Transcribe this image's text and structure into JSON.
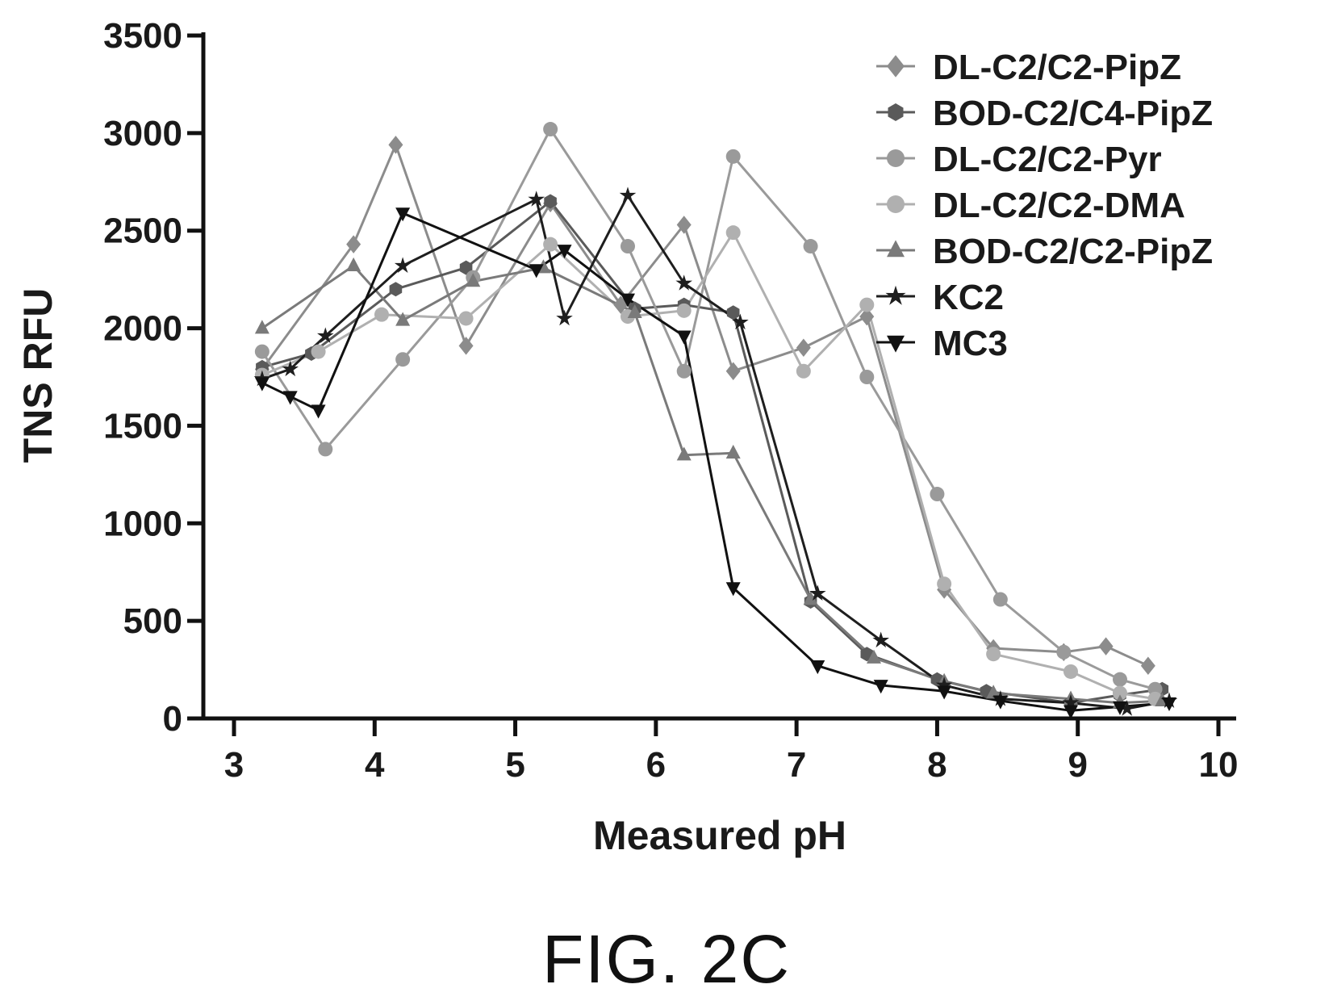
{
  "caption": "FIG. 2C",
  "chart_data": {
    "type": "line",
    "xlabel": "Measured pH",
    "ylabel": "TNS RFU",
    "xlim": [
      3,
      10
    ],
    "ylim": [
      0,
      3500
    ],
    "x_ticks": [
      "3",
      "4",
      "5",
      "6",
      "7",
      "8",
      "9",
      "10"
    ],
    "y_ticks": [
      "0",
      "500",
      "1000",
      "1500",
      "2000",
      "2500",
      "3000",
      "3500"
    ],
    "legend_position": "top-right",
    "grid": false,
    "series": [
      {
        "name": "DL-C2/C2-PipZ",
        "marker": "diamond",
        "color": "#8c8c8c",
        "points": [
          [
            3.2,
            1790
          ],
          [
            3.85,
            2430
          ],
          [
            4.15,
            2940
          ],
          [
            4.65,
            1910
          ],
          [
            5.25,
            2640
          ],
          [
            5.75,
            2120
          ],
          [
            6.2,
            2530
          ],
          [
            6.55,
            1780
          ],
          [
            7.05,
            1900
          ],
          [
            7.5,
            2060
          ],
          [
            8.05,
            660
          ],
          [
            8.4,
            360
          ],
          [
            8.9,
            340
          ],
          [
            9.2,
            370
          ],
          [
            9.5,
            270
          ]
        ]
      },
      {
        "name": "BOD-C2/C4-PipZ",
        "marker": "hexagon",
        "color": "#5a5a5a",
        "points": [
          [
            3.2,
            1800
          ],
          [
            3.55,
            1870
          ],
          [
            4.15,
            2200
          ],
          [
            4.65,
            2310
          ],
          [
            5.25,
            2650
          ],
          [
            5.85,
            2100
          ],
          [
            6.2,
            2120
          ],
          [
            6.55,
            2080
          ],
          [
            7.1,
            600
          ],
          [
            7.5,
            330
          ],
          [
            8.0,
            200
          ],
          [
            8.35,
            140
          ],
          [
            8.95,
            80
          ],
          [
            9.3,
            120
          ],
          [
            9.6,
            150
          ]
        ]
      },
      {
        "name": "DL-C2/C2-Pyr",
        "marker": "circle",
        "color": "#9a9a9a",
        "points": [
          [
            3.2,
            1880
          ],
          [
            3.65,
            1380
          ],
          [
            4.2,
            1840
          ],
          [
            4.7,
            2260
          ],
          [
            5.25,
            3020
          ],
          [
            5.8,
            2420
          ],
          [
            6.2,
            1780
          ],
          [
            6.55,
            2880
          ],
          [
            7.1,
            2420
          ],
          [
            7.5,
            1750
          ],
          [
            8.0,
            1150
          ],
          [
            8.45,
            610
          ],
          [
            8.9,
            340
          ],
          [
            9.3,
            200
          ],
          [
            9.55,
            150
          ]
        ]
      },
      {
        "name": "DL-C2/C2-DMA",
        "marker": "circle",
        "color": "#b0b0b0",
        "points": [
          [
            3.2,
            1760
          ],
          [
            3.6,
            1880
          ],
          [
            4.05,
            2070
          ],
          [
            4.65,
            2050
          ],
          [
            5.25,
            2430
          ],
          [
            5.8,
            2060
          ],
          [
            6.2,
            2090
          ],
          [
            6.55,
            2490
          ],
          [
            7.05,
            1780
          ],
          [
            7.5,
            2120
          ],
          [
            8.05,
            690
          ],
          [
            8.4,
            330
          ],
          [
            8.95,
            240
          ],
          [
            9.3,
            130
          ],
          [
            9.55,
            100
          ]
        ]
      },
      {
        "name": "BOD-C2/C2-PipZ",
        "marker": "triangle",
        "color": "#7a7a7a",
        "points": [
          [
            3.2,
            2000
          ],
          [
            3.85,
            2320
          ],
          [
            4.2,
            2040
          ],
          [
            4.7,
            2240
          ],
          [
            5.2,
            2310
          ],
          [
            5.85,
            2080
          ],
          [
            6.2,
            1350
          ],
          [
            6.55,
            1360
          ],
          [
            7.1,
            610
          ],
          [
            7.55,
            310
          ],
          [
            8.05,
            190
          ],
          [
            8.4,
            130
          ],
          [
            8.95,
            100
          ],
          [
            9.3,
            80
          ],
          [
            9.6,
            90
          ]
        ]
      },
      {
        "name": "KC2",
        "marker": "star",
        "color": "#1e1e1e",
        "points": [
          [
            3.2,
            1740
          ],
          [
            3.4,
            1790
          ],
          [
            3.65,
            1960
          ],
          [
            4.2,
            2320
          ],
          [
            5.15,
            2660
          ],
          [
            5.35,
            2050
          ],
          [
            5.8,
            2680
          ],
          [
            6.2,
            2230
          ],
          [
            6.6,
            2030
          ],
          [
            7.15,
            640
          ],
          [
            7.6,
            400
          ],
          [
            8.05,
            170
          ],
          [
            8.45,
            100
          ],
          [
            8.95,
            80
          ],
          [
            9.35,
            50
          ],
          [
            9.65,
            90
          ]
        ]
      },
      {
        "name": "MC3",
        "marker": "triangle-down",
        "color": "#111111",
        "points": [
          [
            3.2,
            1720
          ],
          [
            3.4,
            1650
          ],
          [
            3.6,
            1580
          ],
          [
            4.2,
            2590
          ],
          [
            5.15,
            2300
          ],
          [
            5.35,
            2400
          ],
          [
            5.8,
            2150
          ],
          [
            6.2,
            1960
          ],
          [
            6.55,
            670
          ],
          [
            7.15,
            270
          ],
          [
            7.6,
            170
          ],
          [
            8.05,
            140
          ],
          [
            8.45,
            90
          ],
          [
            8.95,
            40
          ],
          [
            9.3,
            60
          ],
          [
            9.65,
            80
          ]
        ]
      }
    ]
  }
}
